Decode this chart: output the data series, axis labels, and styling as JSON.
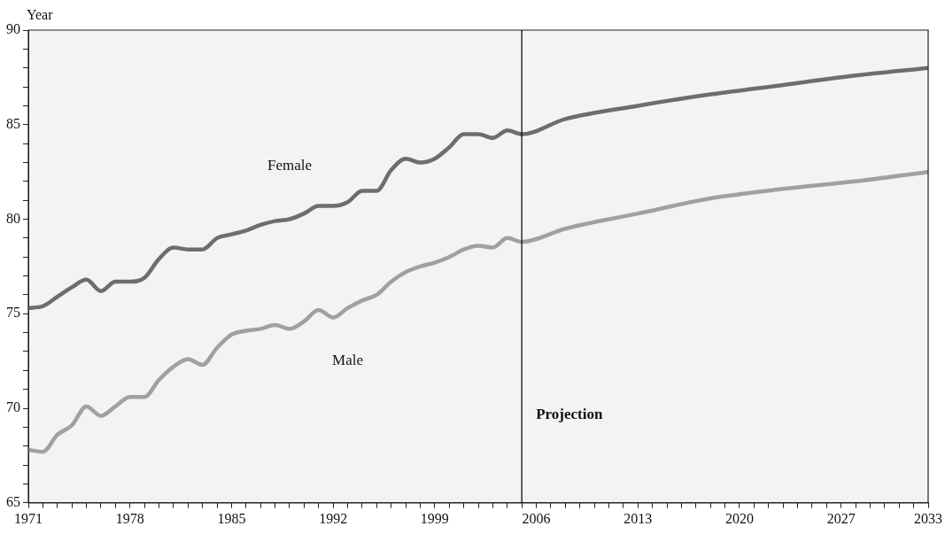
{
  "chart_data": {
    "type": "line",
    "ylabel": "Year",
    "xlim": [
      1971,
      2033
    ],
    "ylim": [
      65,
      90
    ],
    "xticks": [
      1971,
      {
        "value": 1972,
        "label": null
      },
      {
        "value": 1973,
        "label": null
      },
      {
        "value": 1974,
        "label": null
      },
      {
        "value": 1975,
        "label": null
      },
      {
        "value": 1976,
        "label": null
      },
      {
        "value": 1977,
        "label": null
      },
      1978,
      {
        "value": 1979,
        "label": null
      },
      {
        "value": 1980,
        "label": null
      },
      {
        "value": 1981,
        "label": null
      },
      {
        "value": 1982,
        "label": null
      },
      {
        "value": 1983,
        "label": null
      },
      {
        "value": 1984,
        "label": null
      },
      1985,
      {
        "value": 1986,
        "label": null
      },
      {
        "value": 1987,
        "label": null
      },
      {
        "value": 1988,
        "label": null
      },
      {
        "value": 1989,
        "label": null
      },
      {
        "value": 1990,
        "label": null
      },
      {
        "value": 1991,
        "label": null
      },
      1992,
      {
        "value": 1993,
        "label": null
      },
      {
        "value": 1994,
        "label": null
      },
      {
        "value": 1995,
        "label": null
      },
      {
        "value": 1996,
        "label": null
      },
      {
        "value": 1997,
        "label": null
      },
      {
        "value": 1998,
        "label": null
      },
      1999,
      {
        "value": 2000,
        "label": null
      },
      {
        "value": 2001,
        "label": null
      },
      {
        "value": 2002,
        "label": null
      },
      {
        "value": 2003,
        "label": null
      },
      {
        "value": 2004,
        "label": null
      },
      {
        "value": 2005,
        "label": null
      },
      2006,
      {
        "value": 2007,
        "label": null
      },
      {
        "value": 2008,
        "label": null
      },
      {
        "value": 2009,
        "label": null
      },
      {
        "value": 2010,
        "label": null
      },
      {
        "value": 2011,
        "label": null
      },
      {
        "value": 2012,
        "label": null
      },
      2013,
      {
        "value": 2014,
        "label": null
      },
      {
        "value": 2015,
        "label": null
      },
      {
        "value": 2016,
        "label": null
      },
      {
        "value": 2017,
        "label": null
      },
      {
        "value": 2018,
        "label": null
      },
      {
        "value": 2019,
        "label": null
      },
      2020,
      {
        "value": 2021,
        "label": null
      },
      {
        "value": 2022,
        "label": null
      },
      {
        "value": 2023,
        "label": null
      },
      {
        "value": 2024,
        "label": null
      },
      {
        "value": 2025,
        "label": null
      },
      {
        "value": 2026,
        "label": null
      },
      2027,
      {
        "value": 2028,
        "label": null
      },
      {
        "value": 2029,
        "label": null
      },
      {
        "value": 2030,
        "label": null
      },
      {
        "value": 2031,
        "label": null
      },
      {
        "value": 2032,
        "label": null
      },
      2033
    ],
    "yticks": [
      65,
      {
        "value": 66,
        "label": null
      },
      {
        "value": 67,
        "label": null
      },
      {
        "value": 68,
        "label": null
      },
      {
        "value": 69,
        "label": null
      },
      70,
      {
        "value": 71,
        "label": null
      },
      {
        "value": 72,
        "label": null
      },
      {
        "value": 73,
        "label": null
      },
      {
        "value": 74,
        "label": null
      },
      75,
      {
        "value": 76,
        "label": null
      },
      {
        "value": 77,
        "label": null
      },
      {
        "value": 78,
        "label": null
      },
      {
        "value": 79,
        "label": null
      },
      80,
      {
        "value": 81,
        "label": null
      },
      {
        "value": 82,
        "label": null
      },
      {
        "value": 83,
        "label": null
      },
      {
        "value": 84,
        "label": null
      },
      85,
      {
        "value": 86,
        "label": null
      },
      {
        "value": 87,
        "label": null
      },
      {
        "value": 88,
        "label": null
      },
      {
        "value": 89,
        "label": null
      },
      90
    ],
    "grid": false,
    "legend": false,
    "marker": "none",
    "line_style": "solid",
    "ref_lines": [
      {
        "axis": "x",
        "value": 2005,
        "label": "Projection",
        "color": "#000000"
      }
    ],
    "series": [
      {
        "name": "Female",
        "color": "#6d6d6d",
        "x": [
          1971,
          1972,
          1973,
          1974,
          1975,
          1976,
          1977,
          1978,
          1979,
          1980,
          1981,
          1982,
          1983,
          1984,
          1985,
          1986,
          1987,
          1988,
          1989,
          1990,
          1991,
          1992,
          1993,
          1994,
          1995,
          1996,
          1997,
          1998,
          1999,
          2000,
          2001,
          2002,
          2003,
          2004,
          2005,
          2008,
          2013,
          2018,
          2023,
          2028,
          2033
        ],
        "values": [
          75.3,
          75.4,
          75.9,
          76.4,
          76.8,
          76.2,
          76.7,
          76.7,
          76.9,
          77.9,
          78.5,
          78.4,
          78.4,
          79,
          79.2,
          79.4,
          79.7,
          79.9,
          80,
          80.3,
          80.7,
          80.7,
          80.9,
          81.5,
          81.5,
          82.6,
          83.2,
          83,
          83.2,
          83.8,
          84.5,
          84.5,
          84.3,
          84.7,
          84.5,
          85.3,
          86,
          86.6,
          87.1,
          87.6,
          88
        ]
      },
      {
        "name": "Male",
        "color": "#a0a0a0",
        "x": [
          1971,
          1972,
          1973,
          1974,
          1975,
          1976,
          1977,
          1978,
          1979,
          1980,
          1981,
          1982,
          1983,
          1984,
          1985,
          1986,
          1987,
          1988,
          1989,
          1990,
          1991,
          1992,
          1993,
          1994,
          1995,
          1996,
          1997,
          1998,
          1999,
          2000,
          2001,
          2002,
          2003,
          2004,
          2005,
          2008,
          2013,
          2018,
          2023,
          2028,
          2033
        ],
        "values": [
          67.8,
          67.7,
          68.6,
          69.1,
          70.1,
          69.6,
          70.1,
          70.6,
          70.6,
          71.5,
          72.2,
          72.6,
          72.3,
          73.2,
          73.9,
          74.1,
          74.2,
          74.4,
          74.2,
          74.6,
          75.2,
          74.8,
          75.3,
          75.7,
          76,
          76.7,
          77.2,
          77.5,
          77.7,
          78,
          78.4,
          78.6,
          78.5,
          79,
          78.8,
          79.5,
          80.3,
          81.1,
          81.6,
          82,
          82.5
        ]
      }
    ]
  }
}
